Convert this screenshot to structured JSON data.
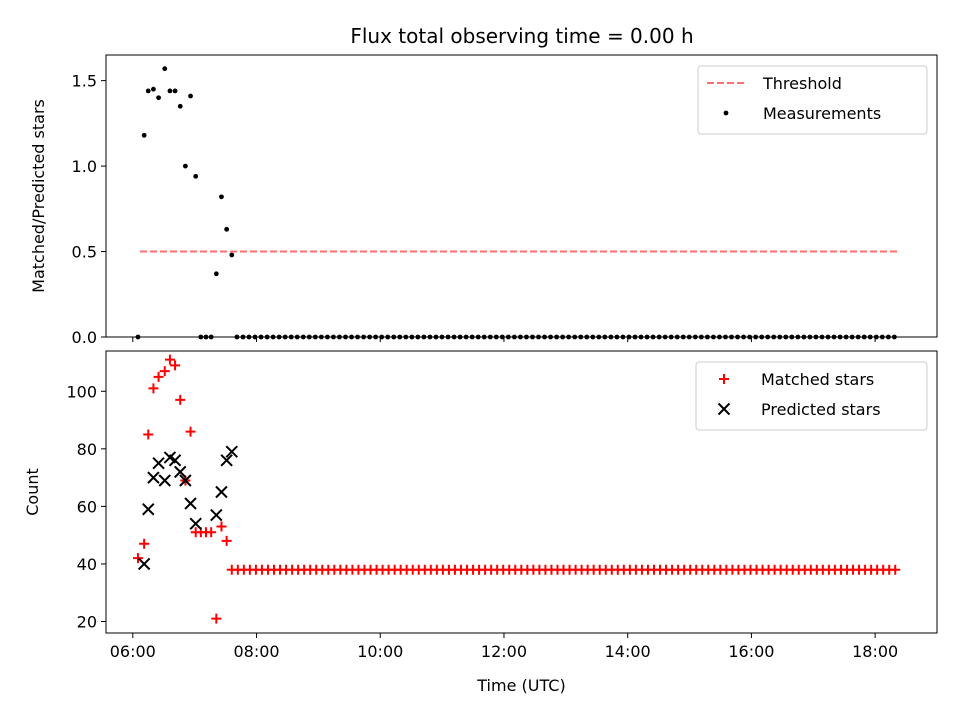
{
  "chart_data": [
    {
      "type": "scatter",
      "title": "Flux total observing time = 0.00 h",
      "xlabel": "",
      "ylabel": "Matched/Predicted stars",
      "xlim": [
        "05:34",
        "19:00"
      ],
      "ylim": [
        0,
        1.65
      ],
      "yticks": [
        "0.0",
        "0.5",
        "1.0",
        "1.5"
      ],
      "ytick_values": [
        0,
        0.5,
        1.0,
        1.5
      ],
      "xticks_values": [
        "06:00",
        "08:00",
        "10:00",
        "12:00",
        "14:00",
        "16:00",
        "18:00"
      ],
      "legend_position": "top-right",
      "threshold": {
        "name": "Threshold",
        "value": 0.5,
        "x_start": "06:07",
        "x_end": "18:22",
        "color": "#ff7070",
        "style": "dashed"
      },
      "series": [
        {
          "name": "Measurements",
          "marker": "dot",
          "color": "#000000",
          "points": [
            [
              "06:05",
              0.0
            ],
            [
              "06:11",
              1.18
            ],
            [
              "06:15",
              1.44
            ],
            [
              "06:20",
              1.45
            ],
            [
              "06:25",
              1.4
            ],
            [
              "06:31",
              1.57
            ],
            [
              "06:36",
              1.44
            ],
            [
              "06:41",
              1.44
            ],
            [
              "06:46",
              1.35
            ],
            [
              "06:51",
              1.0
            ],
            [
              "06:56",
              1.41
            ],
            [
              "07:01",
              0.94
            ],
            [
              "07:06",
              0.0
            ],
            [
              "07:11",
              0.0
            ],
            [
              "07:16",
              0.0
            ],
            [
              "07:21",
              0.37
            ],
            [
              "07:26",
              0.82
            ],
            [
              "07:31",
              0.63
            ],
            [
              "07:36",
              0.48
            ]
          ],
          "zero_run": {
            "start": "07:41",
            "end": "18:22",
            "step_minutes": 5.85,
            "value": 0.0
          }
        }
      ]
    },
    {
      "type": "scatter",
      "title": "",
      "xlabel": "Time (UTC)",
      "ylabel": "Count",
      "xlim": [
        "05:34",
        "19:00"
      ],
      "ylim": [
        16,
        114
      ],
      "yticks": [
        "20",
        "40",
        "60",
        "80",
        "100"
      ],
      "ytick_values": [
        20,
        40,
        60,
        80,
        100
      ],
      "xticks": [
        "06:00",
        "08:00",
        "10:00",
        "12:00",
        "14:00",
        "16:00",
        "18:00"
      ],
      "legend_position": "top-right",
      "series": [
        {
          "name": "Matched stars",
          "marker": "plus",
          "color": "#ff0000",
          "points": [
            [
              "06:05",
              42
            ],
            [
              "06:11",
              47
            ],
            [
              "06:15",
              85
            ],
            [
              "06:20",
              101
            ],
            [
              "06:25",
              105
            ],
            [
              "06:31",
              107
            ],
            [
              "06:36",
              111
            ],
            [
              "06:41",
              109
            ],
            [
              "06:46",
              97
            ],
            [
              "06:51",
              69
            ],
            [
              "06:56",
              86
            ],
            [
              "07:01",
              51
            ],
            [
              "07:06",
              51
            ],
            [
              "07:11",
              51
            ],
            [
              "07:16",
              51
            ],
            [
              "07:21",
              21
            ],
            [
              "07:26",
              53
            ],
            [
              "07:31",
              48
            ]
          ],
          "constant_run": {
            "start": "07:36",
            "end": "18:22",
            "step_minutes": 5.85,
            "value": 38
          }
        },
        {
          "name": "Predicted stars",
          "marker": "x",
          "color": "#000000",
          "points": [
            [
              "06:11",
              40
            ],
            [
              "06:15",
              59
            ],
            [
              "06:20",
              70
            ],
            [
              "06:25",
              75
            ],
            [
              "06:31",
              69
            ],
            [
              "06:36",
              77
            ],
            [
              "06:41",
              76
            ],
            [
              "06:46",
              72
            ],
            [
              "06:51",
              69
            ],
            [
              "06:56",
              61
            ],
            [
              "07:01",
              54
            ],
            [
              "07:21",
              57
            ],
            [
              "07:26",
              65
            ],
            [
              "07:31",
              76
            ],
            [
              "07:36",
              79
            ]
          ]
        }
      ]
    }
  ]
}
